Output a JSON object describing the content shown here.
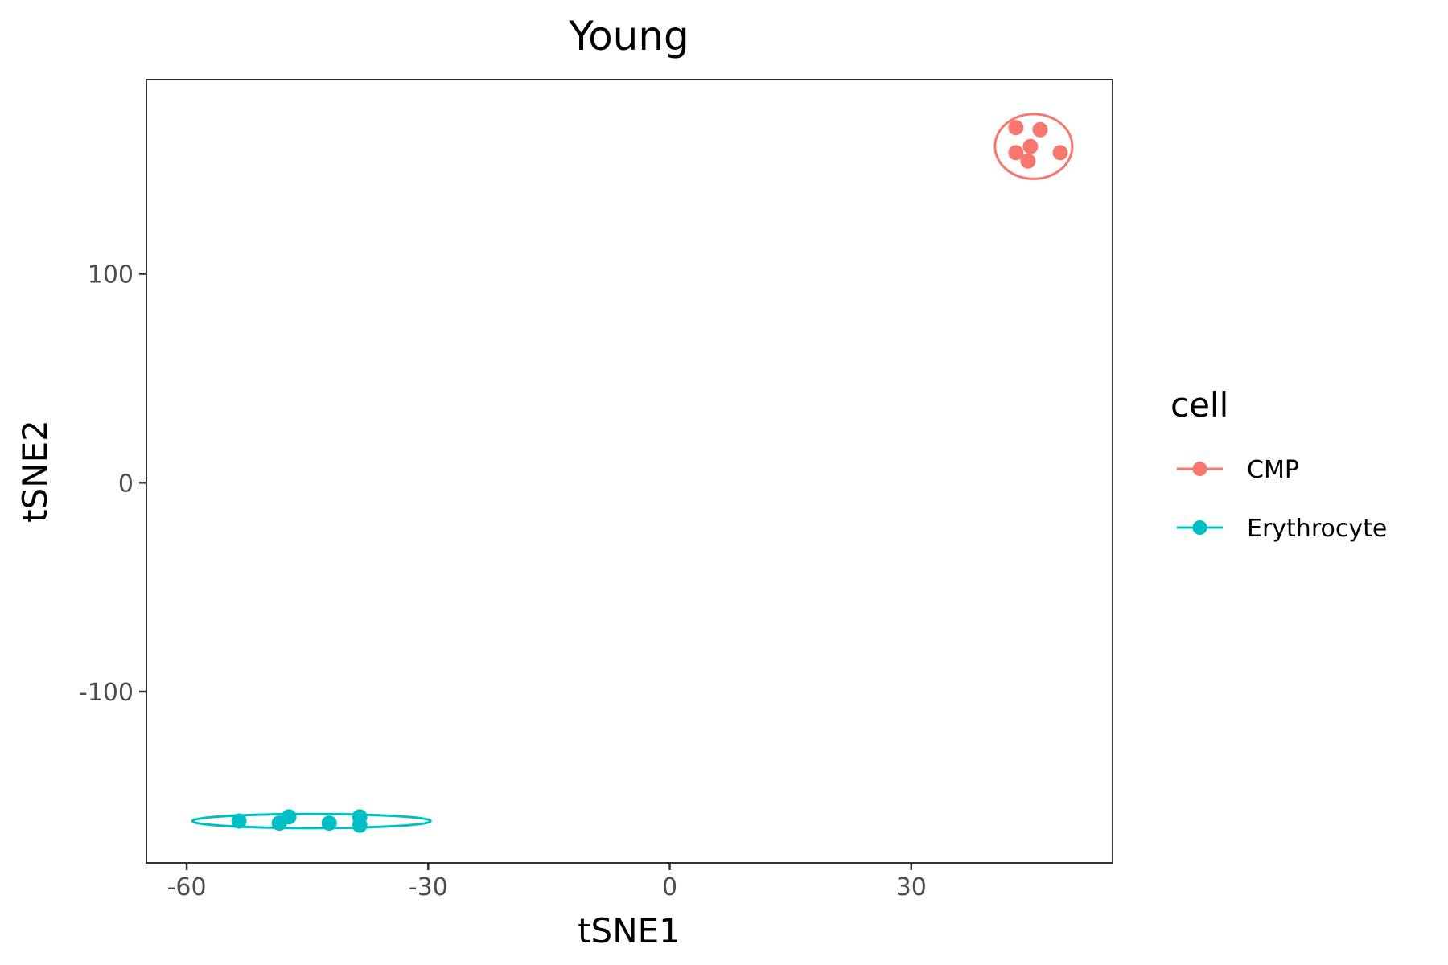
{
  "chart_data": {
    "type": "scatter",
    "title": "Young",
    "xlabel": "tSNE1",
    "ylabel": "tSNE2",
    "xlim": [
      -65,
      55
    ],
    "ylim": [
      -182,
      193
    ],
    "xticks": [
      -60,
      -30,
      0,
      30
    ],
    "yticks": [
      -100,
      0,
      100
    ],
    "grid": false,
    "legend": {
      "title": "cell",
      "position": "right"
    },
    "series": [
      {
        "name": "CMP",
        "color": "#F8766D",
        "points": [
          [
            43,
            170
          ],
          [
            46,
            169
          ],
          [
            44.8,
            161
          ],
          [
            43,
            158
          ],
          [
            48.5,
            158
          ],
          [
            44.5,
            154
          ]
        ],
        "ellipse": {
          "cx": 45.2,
          "cy": 161,
          "rx": 4.8,
          "ry": 15.5
        }
      },
      {
        "name": "Erythrocyte",
        "color": "#00BFC4",
        "points": [
          [
            -53.5,
            -162
          ],
          [
            -48.5,
            -163
          ],
          [
            -47.3,
            -160
          ],
          [
            -42.3,
            -163
          ],
          [
            -38.5,
            -160
          ],
          [
            -38.5,
            -164
          ]
        ],
        "ellipse": {
          "cx": -44.5,
          "cy": -162,
          "rx": 14.8,
          "ry": 3.4
        }
      }
    ]
  }
}
